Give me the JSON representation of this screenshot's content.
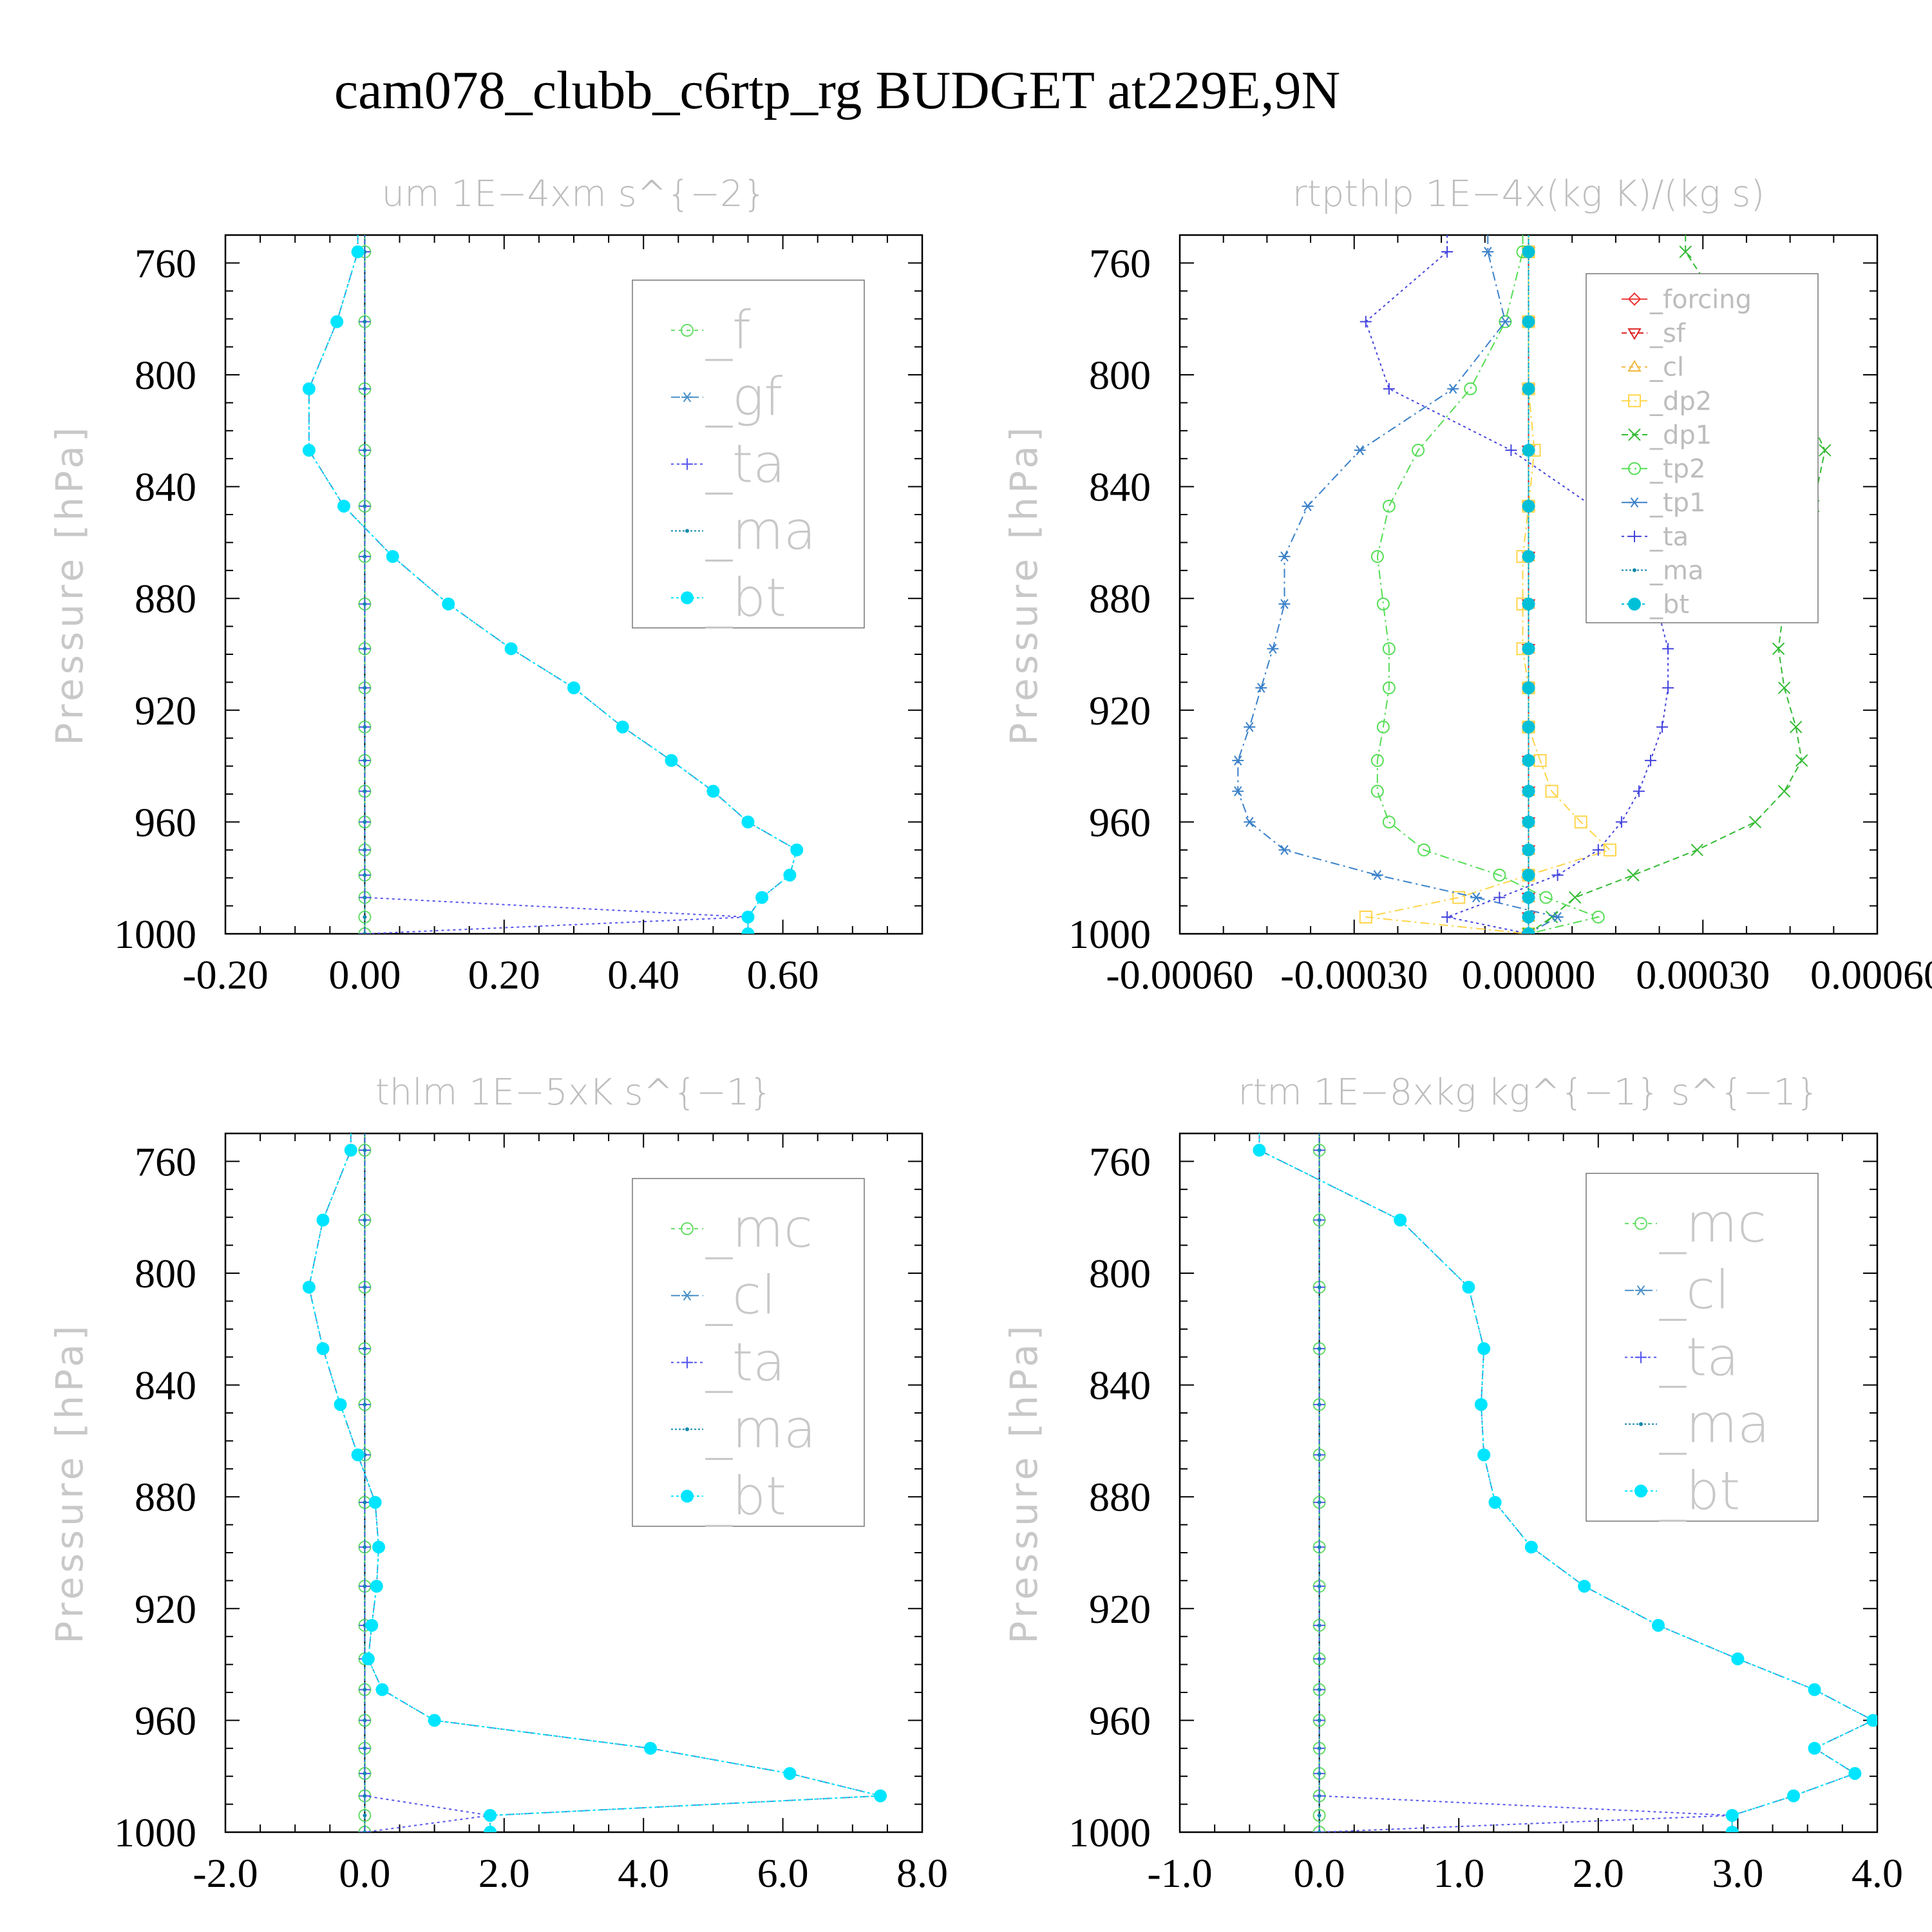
{
  "figure": {
    "title": "cam078_clubb_c6rtp_rg  BUDGET at229E,9N"
  },
  "chart_data": [
    {
      "type": "line",
      "title": "um   1E−4xm s^{−2}",
      "ylabel": "Pressure [hPa]",
      "xlabel": "",
      "xlim": [
        -0.2,
        0.8
      ],
      "ylim": [
        750,
        1000
      ],
      "xticks": [
        "-0.20",
        "0.00",
        "0.20",
        "0.40",
        "0.60"
      ],
      "xtick_values": [
        -0.2,
        0.0,
        0.2,
        0.4,
        0.6
      ],
      "yticks": [
        "760",
        "800",
        "840",
        "880",
        "920",
        "960",
        "1000"
      ],
      "legend_position": "top-right",
      "legend_style": "large",
      "pressure": [
        756,
        781,
        805,
        827,
        847,
        865,
        882,
        898,
        912,
        926,
        938,
        949,
        960,
        970,
        979,
        987,
        994,
        1000
      ],
      "series": [
        {
          "name": "_f",
          "color": "#66dd66",
          "marker": "circle",
          "dash": "6,6",
          "values": [
            0,
            0,
            0,
            0,
            0,
            0,
            0,
            0,
            0,
            0,
            0,
            0,
            0,
            0,
            0,
            0,
            0,
            0
          ]
        },
        {
          "name": "_gf",
          "color": "#4a90c8",
          "marker": "asterisk",
          "dash": "14,6,3,6",
          "values": [
            -0.01,
            -0.04,
            -0.08,
            -0.08,
            -0.03,
            0.04,
            0.12,
            0.21,
            0.3,
            0.37,
            0.44,
            0.5,
            0.55,
            0.62,
            0.61,
            0.57,
            0.55,
            0.55
          ]
        },
        {
          "name": "_ta",
          "color": "#5555ee",
          "marker": "plus",
          "dash": "4,5",
          "values": [
            0,
            0,
            0,
            0,
            0,
            0,
            0,
            0,
            0,
            0,
            0,
            0,
            0,
            0,
            0,
            0,
            0.55,
            0
          ]
        },
        {
          "name": "_ma",
          "color": "#1188aa",
          "marker": "dot",
          "dash": "3,3",
          "values": [
            0,
            0,
            0,
            0,
            0,
            0,
            0,
            0,
            0,
            0,
            0,
            0,
            0,
            0,
            0,
            0,
            0,
            0
          ]
        },
        {
          "name": "_bt",
          "color": "#00e5ff",
          "marker": "filled-circle",
          "dash": "4,4",
          "values": [
            -0.01,
            -0.04,
            -0.08,
            -0.08,
            -0.03,
            0.04,
            0.12,
            0.21,
            0.3,
            0.37,
            0.44,
            0.5,
            0.55,
            0.62,
            0.61,
            0.57,
            0.55,
            0.55
          ]
        }
      ]
    },
    {
      "type": "line",
      "title": "rtpthlp   1E−4x(kg K)/(kg s)",
      "ylabel": "Pressure [hPa]",
      "xlabel": "",
      "xlim": [
        -0.0006,
        0.0006
      ],
      "ylim": [
        750,
        1000
      ],
      "xticks": [
        "-0.00060",
        "-0.00030",
        "0.00000",
        "0.00030",
        "0.00060"
      ],
      "xtick_values": [
        -0.0006,
        -0.0003,
        0.0,
        0.0003,
        0.0006
      ],
      "yticks": [
        "760",
        "800",
        "840",
        "880",
        "920",
        "960",
        "1000"
      ],
      "legend_position": "top-right",
      "legend_style": "small",
      "pressure": [
        756,
        781,
        805,
        827,
        847,
        865,
        882,
        898,
        912,
        926,
        938,
        949,
        960,
        970,
        979,
        987,
        994,
        1000
      ],
      "series": [
        {
          "name": "_forcing",
          "color": "#ee3333",
          "marker": "diamond",
          "dash": "",
          "values": [
            0,
            0,
            0,
            0,
            0,
            0,
            0,
            0,
            0,
            0,
            0,
            0,
            0,
            0,
            0,
            0,
            0,
            0
          ]
        },
        {
          "name": "_sf",
          "color": "#dd2222",
          "marker": "triangle-down",
          "dash": "8,5",
          "values": [
            0,
            0,
            0,
            0,
            0,
            0,
            0,
            0,
            0,
            0,
            0,
            0,
            0,
            0,
            0,
            0,
            0,
            0
          ]
        },
        {
          "name": "_cl",
          "color": "#f0b840",
          "marker": "triangle-up",
          "dash": "6,6",
          "values": [
            0,
            0,
            0,
            0,
            0,
            0,
            0,
            0,
            0,
            0,
            0,
            0,
            0,
            0,
            0,
            0,
            0,
            0
          ]
        },
        {
          "name": "_dp2",
          "color": "#ffd54a",
          "marker": "square",
          "dash": "14,6,3,6",
          "values": [
            0,
            0,
            0,
            1e-05,
            0,
            -1e-05,
            -1e-05,
            -1e-05,
            0,
            0,
            2e-05,
            4e-05,
            9e-05,
            0.00014,
            0.0,
            -0.00012,
            -0.00028,
            0
          ]
        },
        {
          "name": "_dp1",
          "color": "#33bb33",
          "marker": "x",
          "dash": "10,6",
          "values": [
            0.00027,
            0.00035,
            0.00046,
            0.00051,
            0.00049,
            0.00047,
            0.00044,
            0.00043,
            0.00044,
            0.00046,
            0.00047,
            0.00044,
            0.00039,
            0.00029,
            0.00018,
            8e-05,
            4e-05,
            0
          ]
        },
        {
          "name": "_tp2",
          "color": "#55dd55",
          "marker": "circle",
          "dash": "14,6,3,6",
          "values": [
            -1e-05,
            -4e-05,
            -0.0001,
            -0.00019,
            -0.00024,
            -0.00026,
            -0.00025,
            -0.00024,
            -0.00024,
            -0.00025,
            -0.00026,
            -0.00026,
            -0.00024,
            -0.00018,
            -5e-05,
            3e-05,
            0.00012,
            0
          ]
        },
        {
          "name": "_tp1",
          "color": "#3a80c8",
          "marker": "asterisk",
          "dash": "14,6,3,6",
          "values": [
            -7e-05,
            -4e-05,
            -0.00013,
            -0.00029,
            -0.00038,
            -0.00042,
            -0.00042,
            -0.00044,
            -0.00046,
            -0.00048,
            -0.0005,
            -0.0005,
            -0.00048,
            -0.00042,
            -0.00026,
            -9e-05,
            5e-05,
            0
          ]
        },
        {
          "name": "_ta",
          "color": "#4444dd",
          "marker": "plus",
          "dash": "4,5",
          "values": [
            -0.00014,
            -0.00028,
            -0.00024,
            -3e-05,
            0.00011,
            0.00018,
            0.00022,
            0.00024,
            0.00024,
            0.00023,
            0.00021,
            0.00019,
            0.00016,
            0.00012,
            5e-05,
            -5e-05,
            -0.00014,
            0
          ]
        },
        {
          "name": "_ma",
          "color": "#1188aa",
          "marker": "dot",
          "dash": "3,3",
          "values": [
            0,
            0,
            0,
            0,
            0,
            0,
            0,
            0,
            0,
            0,
            0,
            0,
            0,
            0,
            0,
            0,
            0,
            0
          ]
        },
        {
          "name": "_bt",
          "color": "#00c0d8",
          "marker": "filled-circle",
          "dash": "4,4",
          "values": [
            0,
            0,
            0,
            0,
            0,
            0,
            0,
            0,
            0,
            0,
            0,
            0,
            0,
            0,
            0,
            0,
            0,
            0
          ]
        }
      ]
    },
    {
      "type": "line",
      "title": "thlm   1E−5xK s^{−1}",
      "ylabel": "Pressure [hPa]",
      "xlabel": "",
      "xlim": [
        -2.0,
        8.0
      ],
      "ylim": [
        750,
        1000
      ],
      "xticks": [
        "-2.0",
        "0.0",
        "2.0",
        "4.0",
        "6.0",
        "8.0"
      ],
      "xtick_values": [
        -2.0,
        0.0,
        2.0,
        4.0,
        6.0,
        8.0
      ],
      "yticks": [
        "760",
        "800",
        "840",
        "880",
        "920",
        "960",
        "1000"
      ],
      "legend_position": "top-right",
      "legend_style": "large",
      "pressure": [
        756,
        781,
        805,
        827,
        847,
        865,
        882,
        898,
        912,
        926,
        938,
        949,
        960,
        970,
        979,
        987,
        994,
        1000
      ],
      "series": [
        {
          "name": "_mc",
          "color": "#66dd66",
          "marker": "circle",
          "dash": "6,6",
          "values": [
            0,
            0,
            0,
            0,
            0,
            0,
            0,
            0,
            0,
            0,
            0,
            0,
            0,
            0,
            0,
            0,
            0,
            0
          ]
        },
        {
          "name": "_cl",
          "color": "#4a90c8",
          "marker": "asterisk",
          "dash": "14,6,3,6",
          "values": [
            -0.2,
            -0.6,
            -0.8,
            -0.6,
            -0.35,
            -0.1,
            0.15,
            0.2,
            0.17,
            0.1,
            0.05,
            0.25,
            1.0,
            4.1,
            6.1,
            7.4,
            1.8,
            1.8
          ]
        },
        {
          "name": "_ta",
          "color": "#5555ee",
          "marker": "plus",
          "dash": "4,5",
          "values": [
            0,
            0,
            0,
            0,
            0,
            0,
            0,
            0,
            0,
            0,
            0,
            0,
            0,
            0,
            0,
            0,
            1.8,
            0
          ]
        },
        {
          "name": "_ma",
          "color": "#1188aa",
          "marker": "dot",
          "dash": "3,3",
          "values": [
            0,
            0,
            0,
            0,
            0,
            0,
            0,
            0,
            0,
            0,
            0,
            0,
            0,
            0,
            0,
            0,
            0,
            0
          ]
        },
        {
          "name": "_bt",
          "color": "#00e5ff",
          "marker": "filled-circle",
          "dash": "4,4",
          "values": [
            -0.2,
            -0.6,
            -0.8,
            -0.6,
            -0.35,
            -0.1,
            0.15,
            0.2,
            0.17,
            0.1,
            0.05,
            0.25,
            1.0,
            4.1,
            6.1,
            7.4,
            1.8,
            1.8
          ]
        }
      ]
    },
    {
      "type": "line",
      "title": "rtm   1E−8xkg kg^{−1} s^{−1}",
      "ylabel": "Pressure [hPa]",
      "xlabel": "",
      "xlim": [
        -1.0,
        4.0
      ],
      "ylim": [
        750,
        1000
      ],
      "xticks": [
        "-1.0",
        "0.0",
        "1.0",
        "2.0",
        "3.0",
        "4.0"
      ],
      "xtick_values": [
        -1.0,
        0.0,
        1.0,
        2.0,
        3.0,
        4.0
      ],
      "yticks": [
        "760",
        "800",
        "840",
        "880",
        "920",
        "960",
        "1000"
      ],
      "legend_position": "top-right",
      "legend_style": "large",
      "pressure": [
        756,
        781,
        805,
        827,
        847,
        865,
        882,
        898,
        912,
        926,
        938,
        949,
        960,
        970,
        979,
        987,
        994,
        1000
      ],
      "series": [
        {
          "name": "_mc",
          "color": "#66dd66",
          "marker": "circle",
          "dash": "6,6",
          "values": [
            0,
            0,
            0,
            0,
            0,
            0,
            0,
            0,
            0,
            0,
            0,
            0,
            0,
            0,
            0,
            0,
            0,
            0
          ]
        },
        {
          "name": "_cl",
          "color": "#4a90c8",
          "marker": "asterisk",
          "dash": "14,6,3,6",
          "values": [
            -0.43,
            0.58,
            1.07,
            1.18,
            1.16,
            1.18,
            1.26,
            1.52,
            1.9,
            2.43,
            3.0,
            3.55,
            3.97,
            3.55,
            3.84,
            3.4,
            2.96,
            2.96
          ]
        },
        {
          "name": "_ta",
          "color": "#5555ee",
          "marker": "plus",
          "dash": "4,5",
          "values": [
            0,
            0,
            0,
            0,
            0,
            0,
            0,
            0,
            0,
            0,
            0,
            0,
            0,
            0,
            0,
            0,
            2.96,
            0
          ]
        },
        {
          "name": "_ma",
          "color": "#1188aa",
          "marker": "dot",
          "dash": "3,3",
          "values": [
            0,
            0,
            0,
            0,
            0,
            0,
            0,
            0,
            0,
            0,
            0,
            0,
            0,
            0,
            0,
            0,
            0,
            0
          ]
        },
        {
          "name": "_bt",
          "color": "#00e5ff",
          "marker": "filled-circle",
          "dash": "4,4",
          "values": [
            -0.43,
            0.58,
            1.07,
            1.18,
            1.16,
            1.18,
            1.26,
            1.52,
            1.9,
            2.43,
            3.0,
            3.55,
            3.97,
            3.55,
            3.84,
            3.4,
            2.96,
            2.96
          ]
        }
      ]
    }
  ]
}
